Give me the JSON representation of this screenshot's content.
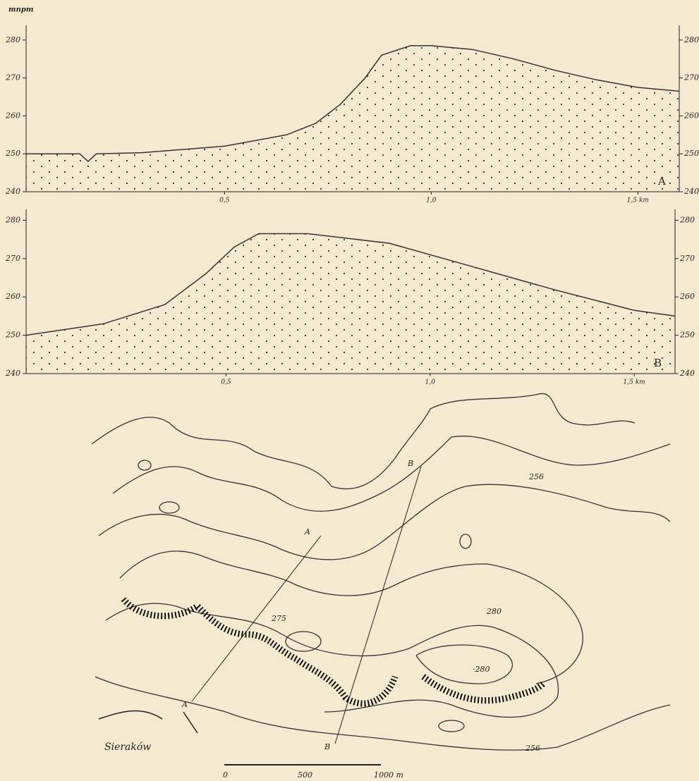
{
  "chart_data": [
    {
      "type": "area",
      "y_axis_label": "mnpm",
      "profile_label": "A",
      "color": "#333",
      "x": [
        0.02,
        0.15,
        0.17,
        0.19,
        0.3,
        0.5,
        0.65,
        0.72,
        0.78,
        0.84,
        0.88,
        0.95,
        1.0,
        1.1,
        1.2,
        1.3,
        1.4,
        1.5,
        1.6
      ],
      "values": [
        250,
        250,
        248,
        250,
        250.3,
        252,
        255,
        258,
        263,
        270,
        276,
        278.5,
        278.5,
        277.5,
        275,
        272,
        269.5,
        267.5,
        266.5
      ],
      "xlim": [
        0.02,
        1.6
      ],
      "ylim": [
        240,
        282
      ],
      "xticks": [
        {
          "value": 0.5,
          "label": "0,5"
        },
        {
          "value": 1.0,
          "label": "1,0"
        },
        {
          "value": 1.5,
          "label": "1,5 km"
        }
      ],
      "yticks": [
        240,
        250,
        260,
        270,
        280
      ],
      "y2ticks": [
        240,
        250,
        260,
        270,
        280
      ]
    },
    {
      "type": "area",
      "profile_label": "B",
      "color": "#333",
      "x": [
        0.01,
        0.2,
        0.35,
        0.45,
        0.52,
        0.58,
        0.7,
        0.9,
        1.1,
        1.3,
        1.5,
        1.6
      ],
      "values": [
        250,
        253,
        258,
        266,
        273,
        276.5,
        276.5,
        274,
        268,
        262,
        256.5,
        255
      ],
      "xlim": [
        0.01,
        1.6
      ],
      "ylim": [
        240,
        281
      ],
      "xticks": [
        {
          "value": 0.5,
          "label": "0,5"
        },
        {
          "value": 1.0,
          "label": "1,0"
        },
        {
          "value": 1.5,
          "label": "1,5 km"
        }
      ],
      "yticks": [
        240,
        250,
        260,
        270,
        280
      ],
      "y2ticks": [
        240,
        250,
        260,
        270,
        280
      ]
    }
  ],
  "map": {
    "contour_labels": [
      "256",
      "280",
      "275",
      "·280",
      "256"
    ],
    "section_labels": [
      "A",
      "A",
      "B",
      "B"
    ],
    "place": "Sieraków",
    "scale": [
      "0",
      "500",
      "1000 m"
    ]
  }
}
